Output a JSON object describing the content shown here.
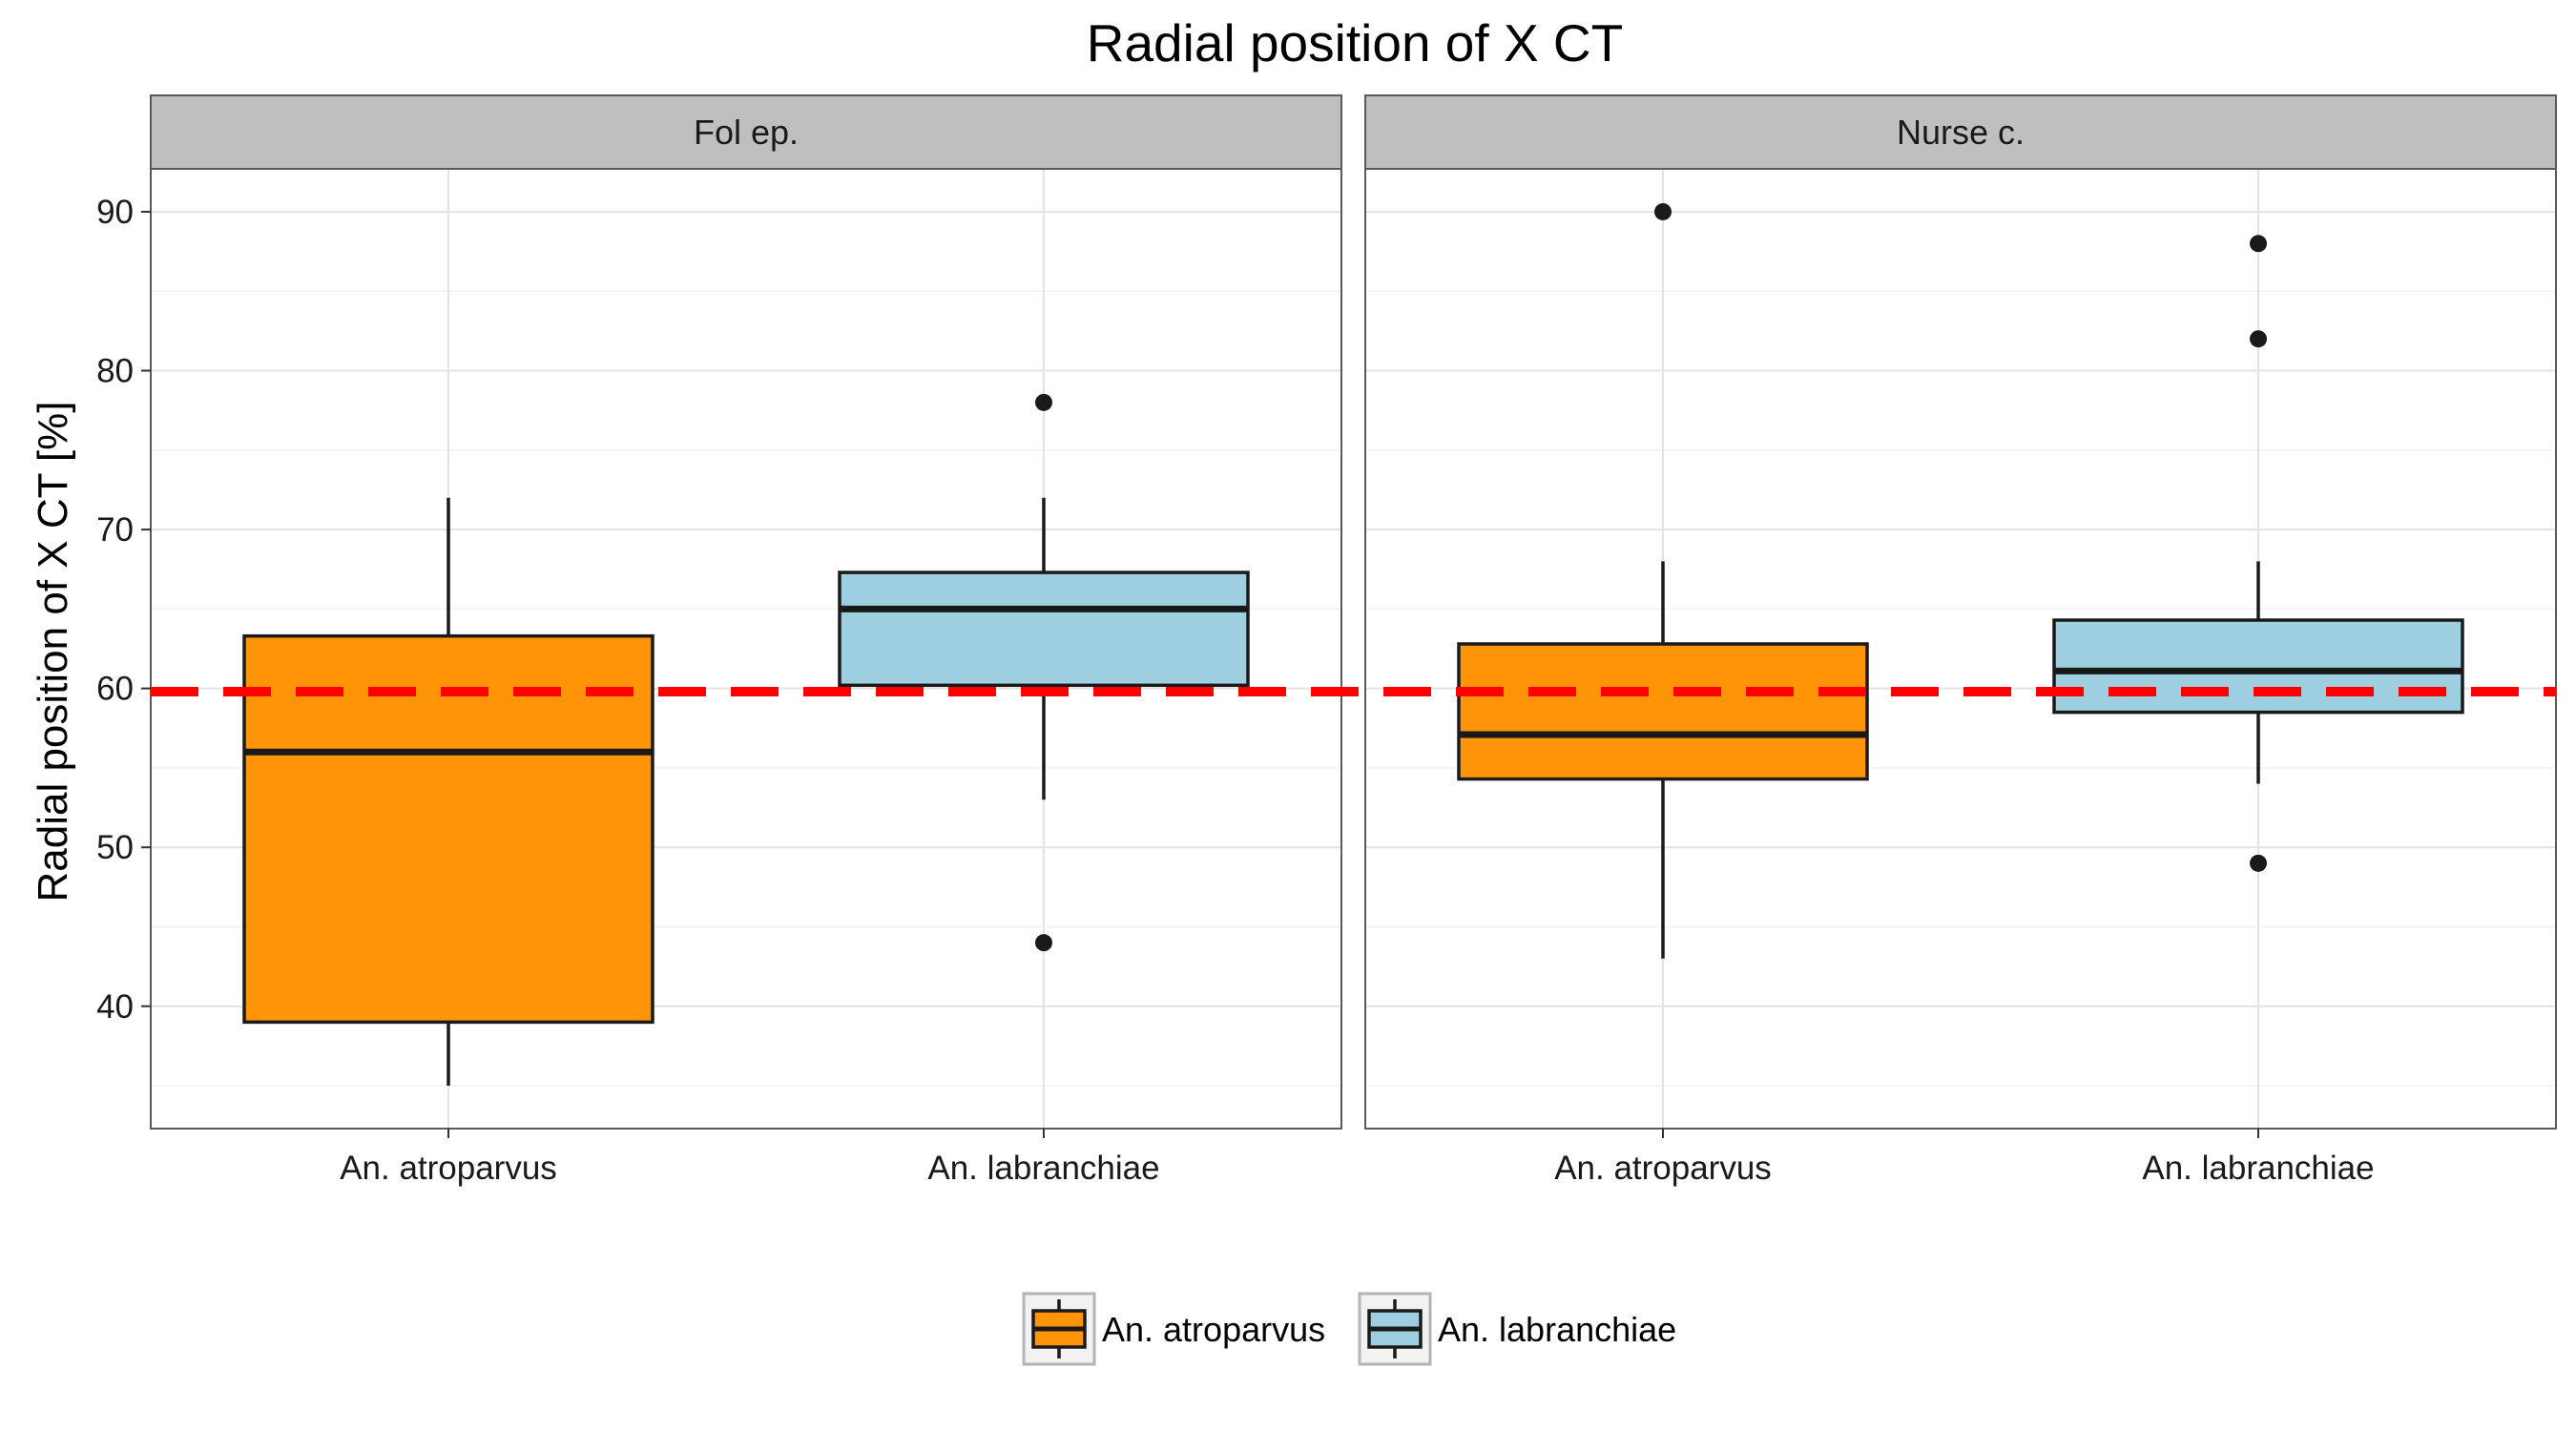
{
  "chart_data": {
    "type": "boxplot",
    "title": "Radial position of X CT",
    "ylabel": "Radial position of X CT [%]",
    "xlabel": "",
    "ylim": [
      32.3,
      92.7
    ],
    "yticks": [
      40,
      50,
      60,
      70,
      80,
      90
    ],
    "grid": true,
    "reference_line": {
      "y": 59.8,
      "color": "#ff0000",
      "style": "dashed"
    },
    "categories": [
      "An. atroparvus",
      "An. labranchiae"
    ],
    "colors": {
      "An. atroparvus": "#ff9408",
      "An. labranchiae": "#9ecfe0"
    },
    "panels": [
      {
        "strip": "Fol ep.",
        "boxes": [
          {
            "category": "An. atroparvus",
            "whisker_low": 35,
            "q1": 39,
            "median": 56,
            "q3": 63.3,
            "whisker_high": 72,
            "outliers": []
          },
          {
            "category": "An. labranchiae",
            "whisker_low": 53,
            "q1": 60.2,
            "median": 65,
            "q3": 67.3,
            "whisker_high": 72,
            "outliers": [
              78,
              44
            ]
          }
        ]
      },
      {
        "strip": "Nurse c.",
        "boxes": [
          {
            "category": "An. atroparvus",
            "whisker_low": 43,
            "q1": 54.3,
            "median": 57.1,
            "q3": 62.8,
            "whisker_high": 68,
            "outliers": [
              90
            ]
          },
          {
            "category": "An. labranchiae",
            "whisker_low": 54,
            "q1": 58.5,
            "median": 61.1,
            "q3": 64.3,
            "whisker_high": 68,
            "outliers": [
              88,
              82,
              49
            ]
          }
        ]
      }
    ],
    "legend": {
      "position": "bottom",
      "entries": [
        "An. atroparvus",
        "An. labranchiae"
      ]
    }
  }
}
